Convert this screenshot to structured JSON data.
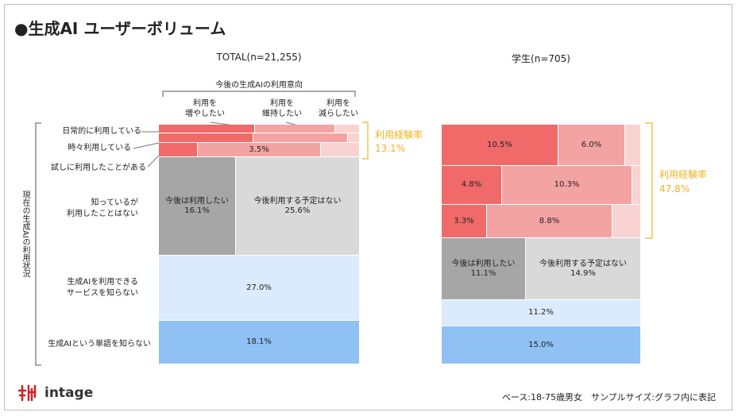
{
  "title": "●生成AI ユーザーボリューム",
  "total": {
    "title": "TOTAL(n=21,255)",
    "intent_header": "今後の生成AIの利用意向",
    "intent_cols": [
      "利用を\n増やしたい",
      "利用を\n維持したい",
      "利用を\n減らしたい"
    ],
    "rows": [
      "日常的に利用している",
      "時々利用している",
      "試しに利用したことがある",
      "知っているが\n利用したことはない",
      "生成AIを利用できる\nサービスを知らない",
      "生成AIという単語を知らない"
    ],
    "experience_label": "利用経験率",
    "experience_value": "13.1%"
  },
  "student": {
    "title": "学生(n=705)",
    "experience_label": "利用経験率",
    "experience_value": "47.8%"
  },
  "y_axis_label": "現在の生成AIの利用状況",
  "logo": "intage",
  "footer": "ベース:18-75歳男女　サンプルサイズ:グラフ内に表記",
  "chart_data": [
    {
      "type": "bar",
      "title": "TOTAL(n=21,255)",
      "layout": "stacked-mosaic",
      "rows": [
        {
          "name": "日常的に利用している",
          "segments": [
            {
              "name": "利用を増やしたい",
              "label": ""
            },
            {
              "name": "利用を維持したい",
              "label": ""
            },
            {
              "name": "利用を減らしたい",
              "label": ""
            }
          ]
        },
        {
          "name": "時々利用している",
          "segments": [
            {
              "name": "利用を増やしたい",
              "label": ""
            },
            {
              "name": "利用を維持したい",
              "label": ""
            },
            {
              "name": "利用を減らしたい",
              "label": ""
            }
          ]
        },
        {
          "name": "試しに利用したことがある",
          "segments": [
            {
              "name": "利用を増やしたい",
              "label": ""
            },
            {
              "name": "利用を維持したい",
              "label": "3.5%"
            },
            {
              "name": "利用を減らしたい",
              "label": ""
            }
          ]
        },
        {
          "name": "知っているが利用したことはない",
          "segments": [
            {
              "name": "今後は利用したい",
              "label": "今後は利用したい\n16.1%"
            },
            {
              "name": "今後利用する予定はない",
              "label": "今後利用する予定はない\n25.6%"
            }
          ]
        },
        {
          "name": "生成AIを利用できるサービスを知らない",
          "segments": [
            {
              "name": "サービスを知らない",
              "label": "27.0%"
            }
          ]
        },
        {
          "name": "生成AIという単語を知らない",
          "segments": [
            {
              "name": "単語を知らない",
              "label": "18.1%"
            }
          ]
        }
      ],
      "experience_rate": "13.1%"
    },
    {
      "type": "bar",
      "title": "学生(n=705)",
      "layout": "stacked-mosaic",
      "rows": [
        {
          "name": "日常的に利用している",
          "segments": [
            {
              "name": "利用を増やしたい",
              "label": "10.5%"
            },
            {
              "name": "利用を維持したい",
              "label": "6.0%"
            },
            {
              "name": "利用を減らしたい",
              "label": ""
            }
          ]
        },
        {
          "name": "時々利用している",
          "segments": [
            {
              "name": "利用を増やしたい",
              "label": "4.8%"
            },
            {
              "name": "利用を維持したい",
              "label": "10.3%"
            },
            {
              "name": "利用を減らしたい",
              "label": ""
            }
          ]
        },
        {
          "name": "試しに利用したことがある",
          "segments": [
            {
              "name": "利用を増やしたい",
              "label": "3.3%"
            },
            {
              "name": "利用を維持したい",
              "label": "8.8%"
            },
            {
              "name": "利用を減らしたい",
              "label": ""
            }
          ]
        },
        {
          "name": "知っているが利用したことはない",
          "segments": [
            {
              "name": "今後は利用したい",
              "label": "今後は利用したい\n11.1%"
            },
            {
              "name": "今後利用する予定はない",
              "label": "今後利用する予定はない\n14.9%"
            }
          ]
        },
        {
          "name": "生成AIを利用できるサービスを知らない",
          "segments": [
            {
              "name": "サービスを知らない",
              "label": "11.2%"
            }
          ]
        },
        {
          "name": "生成AIという単語を知らない",
          "segments": [
            {
              "name": "単語を知らない",
              "label": "15.0%"
            }
          ]
        }
      ],
      "experience_rate": "47.8%"
    }
  ]
}
